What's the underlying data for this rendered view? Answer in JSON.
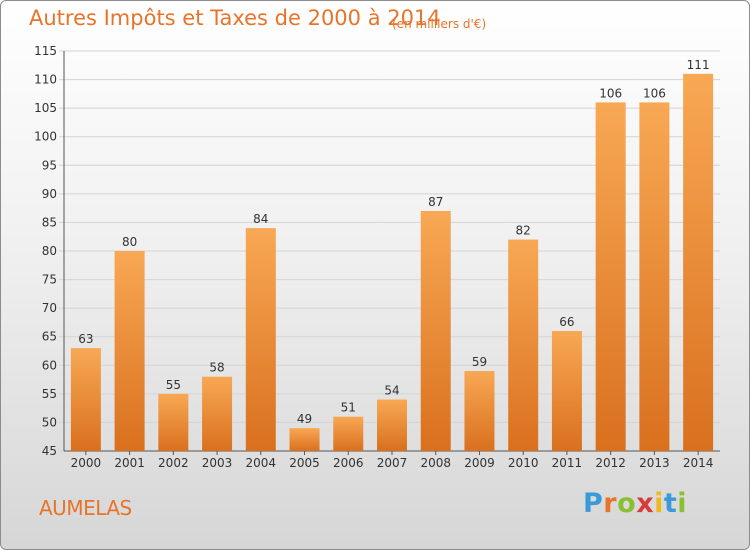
{
  "chart_data": {
    "type": "bar",
    "title": "Autres Impôts et Taxes de 2000 à 2014",
    "unit": "(en milliers d'€)",
    "categories": [
      "2000",
      "2001",
      "2002",
      "2003",
      "2004",
      "2005",
      "2006",
      "2007",
      "2008",
      "2009",
      "2010",
      "2011",
      "2012",
      "2013",
      "2014"
    ],
    "values": [
      63,
      80,
      55,
      58,
      84,
      49,
      51,
      54,
      87,
      59,
      82,
      66,
      106,
      106,
      111
    ],
    "ylim": [
      45,
      115
    ],
    "yticks": [
      45,
      50,
      55,
      60,
      65,
      70,
      75,
      80,
      85,
      90,
      95,
      100,
      105,
      110,
      115
    ],
    "grid": true,
    "bar_color_top": "#f8a854",
    "bar_color_bottom": "#d9701e"
  },
  "commune": "AUMELAS",
  "logo": {
    "letters": [
      "P",
      "r",
      "o",
      "x",
      "i",
      "t",
      "i"
    ],
    "colors": [
      "#3a9ad9",
      "#e8742a",
      "#8bbf2f",
      "#d93a3a",
      "#f0b81e",
      "#3a9ad9",
      "#8bbf2f"
    ]
  },
  "colors": {
    "accent": "#e8742a",
    "grid": "#d4d4d4"
  }
}
